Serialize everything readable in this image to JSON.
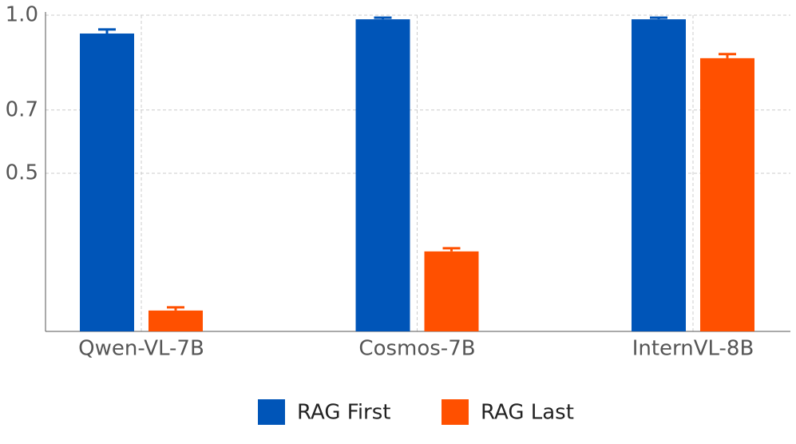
{
  "chart_data": {
    "type": "bar",
    "categories": [
      "Qwen-VL-7B",
      "Cosmos-7B",
      "InternVL-8B"
    ],
    "series": [
      {
        "name": "RAG First",
        "color": "#0055b8",
        "values": [
          0.942,
          0.987,
          0.987
        ],
        "errors": [
          0.013,
          0.005,
          0.005
        ]
      },
      {
        "name": "RAG Last",
        "color": "#ff5000",
        "values": [
          0.066,
          0.253,
          0.864
        ],
        "errors": [
          0.01,
          0.01,
          0.013
        ]
      }
    ],
    "ylim": [
      0,
      1
    ],
    "yticks": [
      0.5,
      0.7,
      {
        "value": 1,
        "label": "1.0"
      }
    ],
    "grid": true,
    "legend": "bottom"
  }
}
